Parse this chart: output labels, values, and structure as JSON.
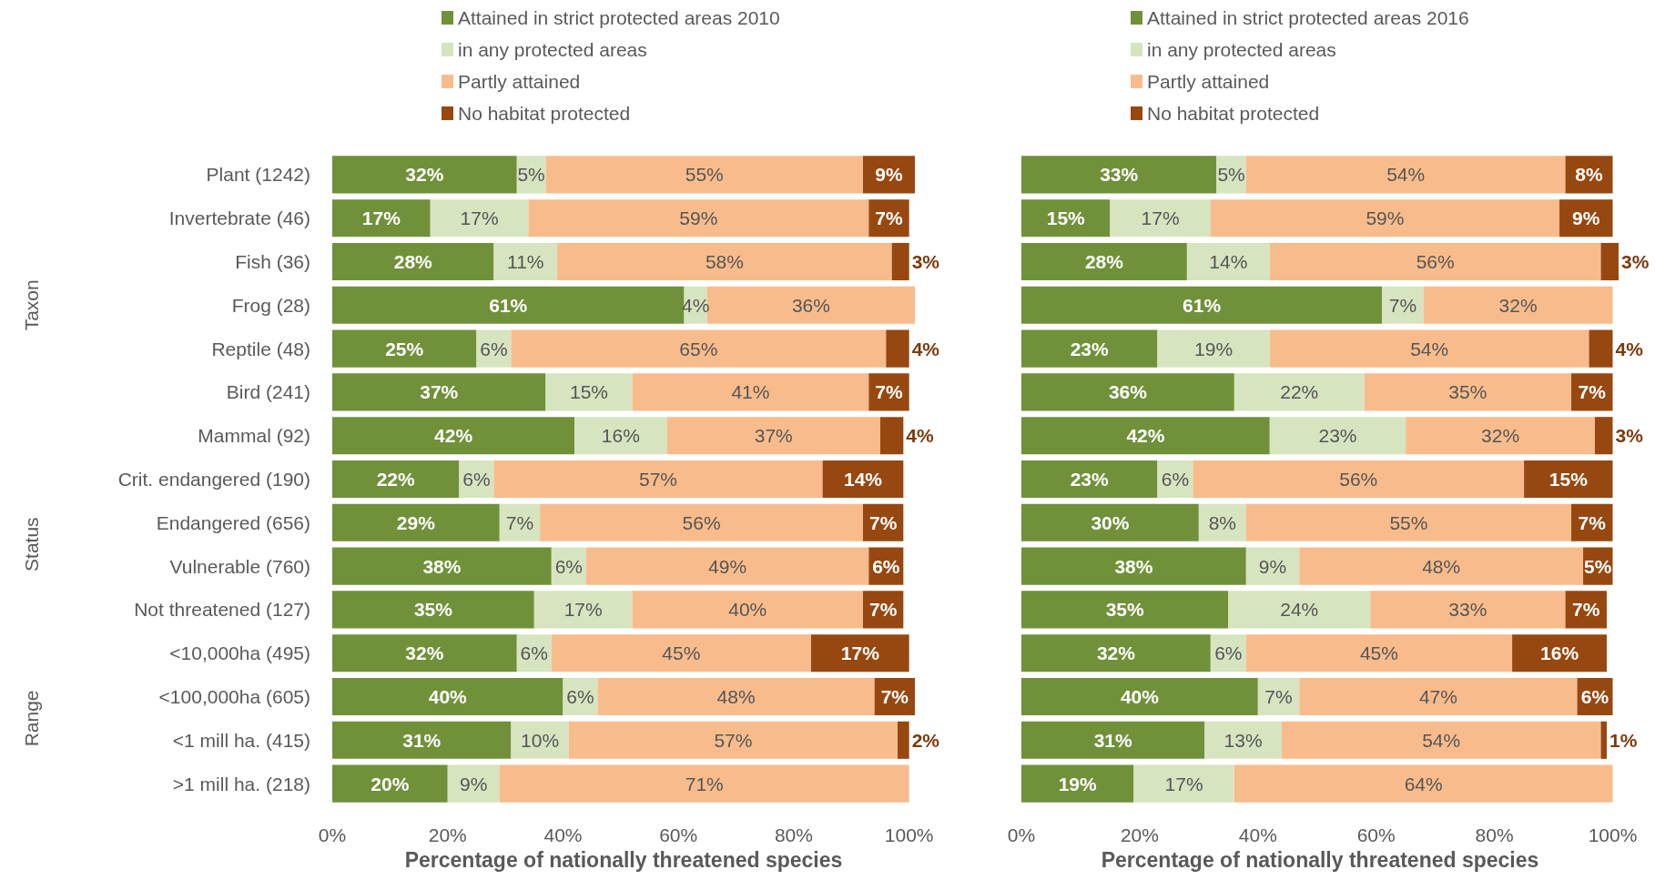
{
  "chart_data": [
    {
      "type": "bar",
      "orientation": "horizontal",
      "stacked": true,
      "legend": "top",
      "grid": false,
      "categories": [
        "Plant (1242)",
        "Invertebrate (46)",
        "Fish (36)",
        "Frog (28)",
        "Reptile (48)",
        "Bird (241)",
        "Mammal (92)",
        "Crit. endangered (190)",
        "Endangered (656)",
        "Vulnerable (760)",
        "Not threatened (127)",
        "<10,000ha (495)",
        "<100,000ha (605)",
        "<1 mill ha. (415)",
        ">1 mill ha. (218)"
      ],
      "xlabel": "Percentage of nationally threatened species",
      "xlim": [
        0,
        101
      ],
      "xticks": [
        {
          "value": 0,
          "label": "0%"
        },
        {
          "value": 20,
          "label": "20%"
        },
        {
          "value": 40,
          "label": "40%"
        },
        {
          "value": 60,
          "label": "60%"
        },
        {
          "value": 80,
          "label": "80%"
        },
        {
          "value": 100,
          "label": "100%"
        }
      ],
      "annotations": [
        "Taxon",
        "Status",
        "Range"
      ],
      "series": [
        {
          "name": "Attained in strict protected areas 2010",
          "color": "#70913a",
          "values": [
            32,
            17,
            28,
            61,
            25,
            37,
            42,
            22,
            29,
            38,
            35,
            32,
            40,
            31,
            20
          ],
          "value_labels": [
            "32%",
            "17%",
            "28%",
            "61%",
            "25%",
            "37%",
            "42%",
            "22%",
            "29%",
            "38%",
            "35%",
            "32%",
            "40%",
            "31%",
            "20%"
          ]
        },
        {
          "name": "in any protected areas",
          "color": "#d7e4c0",
          "values": [
            5,
            17,
            11,
            4,
            6,
            15,
            16,
            6,
            7,
            6,
            17,
            6,
            6,
            10,
            9
          ],
          "value_labels": [
            "5%",
            "17%",
            "11%",
            "4%",
            "6%",
            "15%",
            "16%",
            "6%",
            "7%",
            "6%",
            "17%",
            "6%",
            "6%",
            "10%",
            "9%"
          ]
        },
        {
          "name": "Partly attained",
          "color": "#f8bc8c",
          "values": [
            55,
            59,
            58,
            36,
            65,
            41,
            37,
            57,
            56,
            49,
            40,
            45,
            48,
            57,
            71
          ],
          "value_labels": [
            "55%",
            "59%",
            "58%",
            "36%",
            "65%",
            "41%",
            "37%",
            "57%",
            "56%",
            "49%",
            "40%",
            "45%",
            "48%",
            "57%",
            "71%"
          ]
        },
        {
          "name": "No habitat protected",
          "color": "#974810",
          "values": [
            9,
            7,
            3,
            0,
            4,
            7,
            4,
            14,
            7,
            6,
            7,
            17,
            7,
            2,
            0
          ],
          "value_labels": [
            "9%",
            "7%",
            "3%",
            null,
            "4%",
            "7%",
            "4%",
            "14%",
            "7%",
            "6%",
            "7%",
            "17%",
            "7%",
            "2%",
            null
          ]
        }
      ]
    },
    {
      "type": "bar",
      "orientation": "horizontal",
      "stacked": true,
      "legend": "top",
      "grid": false,
      "tick_labels": "x",
      "categories": [
        "Plant (1242)",
        "Invertebrate (46)",
        "Fish (36)",
        "Frog (28)",
        "Reptile (48)",
        "Bird (241)",
        "Mammal (92)",
        "Crit. endangered (190)",
        "Endangered (656)",
        "Vulnerable (760)",
        "Not threatened (127)",
        "<10,000ha (495)",
        "<100,000ha (605)",
        "<1 mill ha. (415)",
        ">1 mill ha. (218)"
      ],
      "xlabel": "Percentage of nationally threatened species",
      "xlim": [
        0,
        101
      ],
      "xticks": [
        {
          "value": 0,
          "label": "0%"
        },
        {
          "value": 20,
          "label": "20%"
        },
        {
          "value": 40,
          "label": "40%"
        },
        {
          "value": 60,
          "label": "60%"
        },
        {
          "value": 80,
          "label": "80%"
        },
        {
          "value": 100,
          "label": "100%"
        }
      ],
      "series": [
        {
          "name": "Attained in strict protected areas 2016",
          "color": "#70913a",
          "values": [
            33,
            15,
            28,
            61,
            23,
            36,
            42,
            23,
            30,
            38,
            35,
            32,
            40,
            31,
            19
          ],
          "value_labels": [
            "33%",
            "15%",
            "28%",
            "61%",
            "23%",
            "36%",
            "42%",
            "23%",
            "30%",
            "38%",
            "35%",
            "32%",
            "40%",
            "31%",
            "19%"
          ]
        },
        {
          "name": "in any protected areas",
          "color": "#d7e4c0",
          "values": [
            5,
            17,
            14,
            7,
            19,
            22,
            23,
            6,
            8,
            9,
            24,
            6,
            7,
            13,
            17
          ],
          "value_labels": [
            "5%",
            "17%",
            "14%",
            "7%",
            "19%",
            "22%",
            "23%",
            "6%",
            "8%",
            "9%",
            "24%",
            "6%",
            "7%",
            "13%",
            "17%"
          ]
        },
        {
          "name": "Partly attained",
          "color": "#f8bc8c",
          "values": [
            54,
            59,
            56,
            32,
            54,
            35,
            32,
            56,
            55,
            48,
            33,
            45,
            47,
            54,
            64
          ],
          "value_labels": [
            "54%",
            "59%",
            "56%",
            "32%",
            "54%",
            "35%",
            "32%",
            "56%",
            "55%",
            "48%",
            "33%",
            "45%",
            "47%",
            "54%",
            "64%"
          ]
        },
        {
          "name": "No habitat protected",
          "color": "#974810",
          "values": [
            8,
            9,
            3,
            0,
            4,
            7,
            3,
            15,
            7,
            5,
            7,
            16,
            6,
            1,
            0
          ],
          "value_labels": [
            "8%",
            "9%",
            "3%",
            null,
            "4%",
            "7%",
            "3%",
            "15%",
            "7%",
            "5%",
            "7%",
            "16%",
            "6%",
            "1%",
            null
          ]
        }
      ]
    }
  ]
}
